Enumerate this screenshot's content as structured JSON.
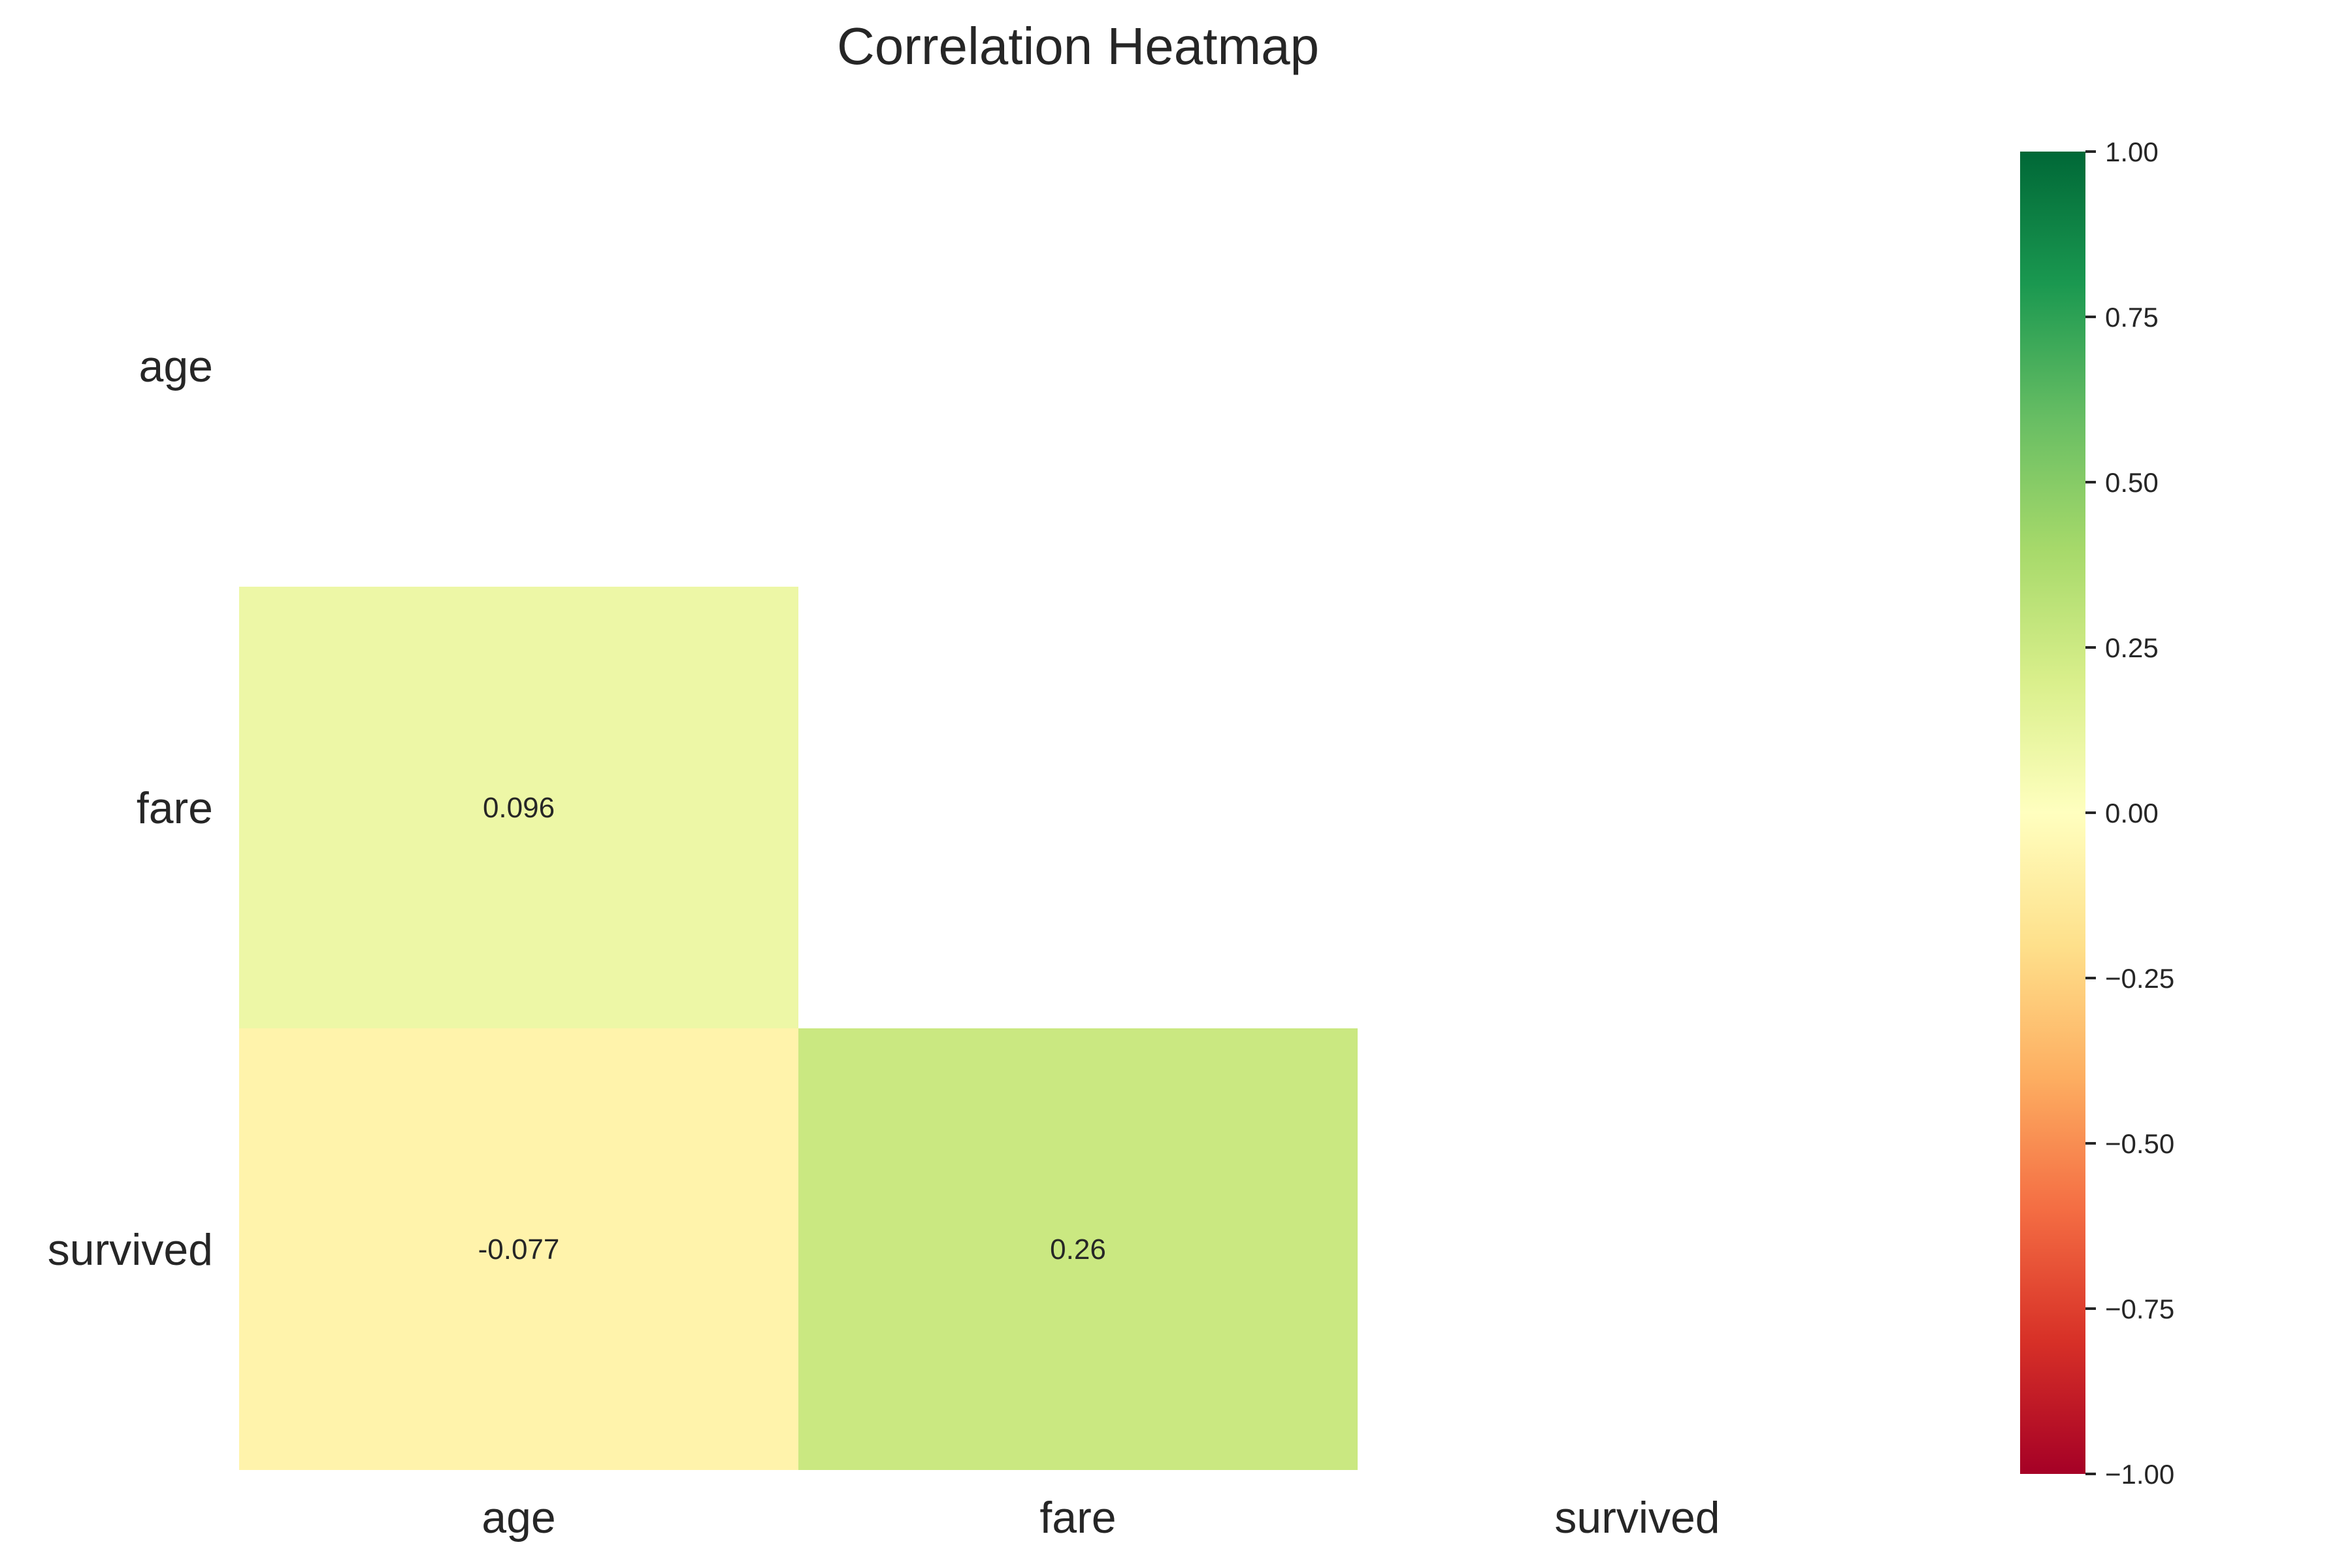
{
  "chart_data": {
    "type": "heatmap",
    "title": "Correlation Heatmap",
    "x_labels": [
      "age",
      "fare",
      "survived"
    ],
    "y_labels": [
      "age",
      "fare",
      "survived"
    ],
    "mask": "upper-triangle-including-diagonal",
    "cells": [
      {
        "row": 1,
        "col": 0,
        "value": 0.096,
        "label": "0.096"
      },
      {
        "row": 2,
        "col": 0,
        "value": -0.077,
        "label": "-0.077"
      },
      {
        "row": 2,
        "col": 1,
        "value": 0.26,
        "label": "0.26"
      }
    ],
    "colormap": "RdYlGn",
    "vmin": -1.0,
    "vmax": 1.0,
    "colorbar": {
      "ticks": [
        1.0,
        0.75,
        0.5,
        0.25,
        0.0,
        -0.25,
        -0.5,
        -0.75,
        -1.0
      ],
      "tick_labels": [
        "1.00",
        "0.75",
        "0.50",
        "0.25",
        "0.00",
        "−0.25",
        "−0.50",
        "−0.75",
        "−1.00"
      ]
    },
    "grid": false
  },
  "colors": {
    "background": "#ffffff",
    "text": "#262626",
    "colormap_stops": [
      "#a50026",
      "#d73027",
      "#f46d43",
      "#fdae61",
      "#fee08b",
      "#ffffbf",
      "#d9ef8b",
      "#a6d96a",
      "#66bd63",
      "#1a9850",
      "#006837"
    ]
  }
}
